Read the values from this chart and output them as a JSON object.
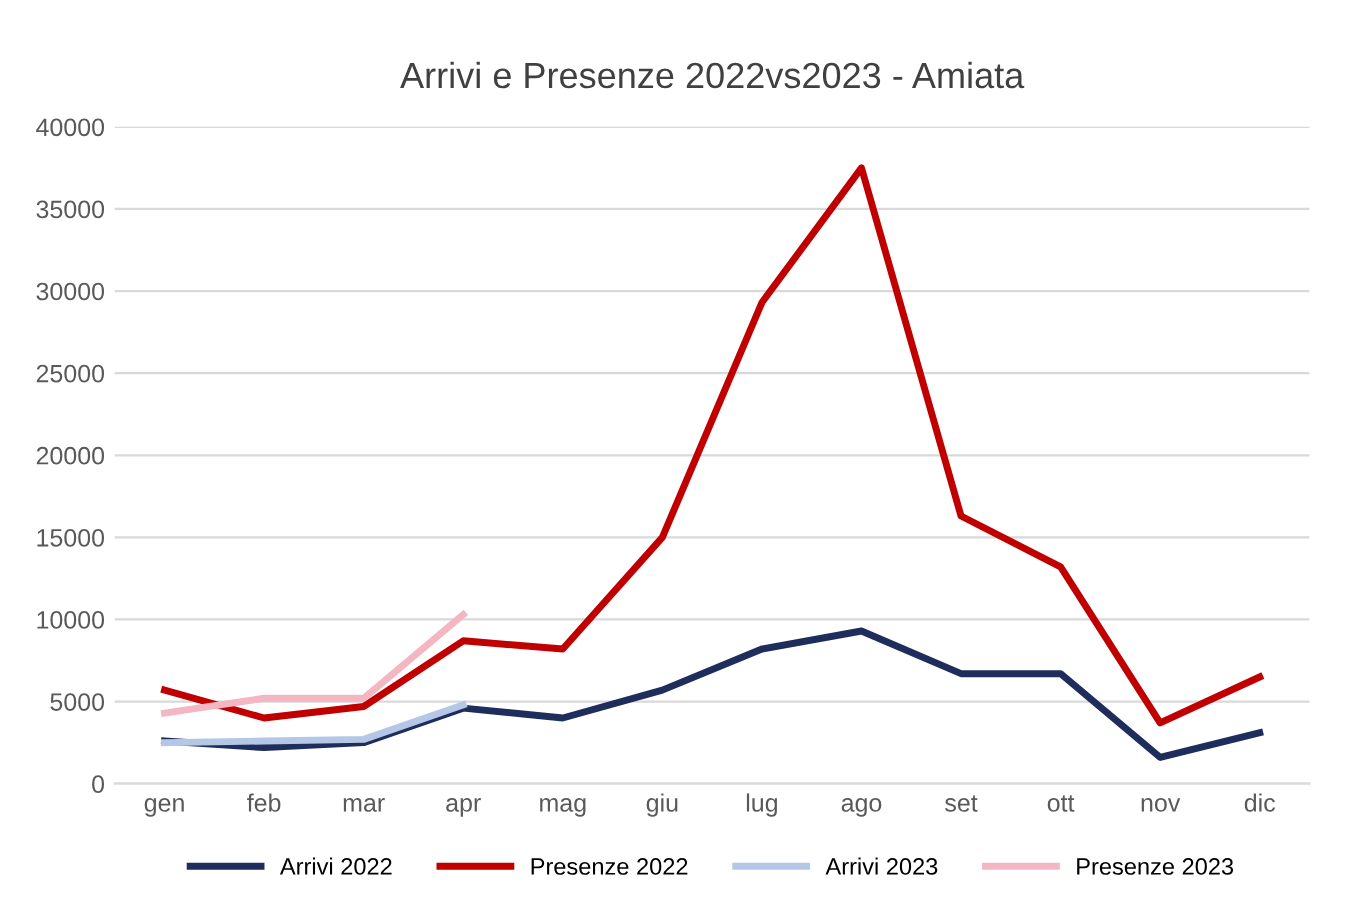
{
  "chart_data": {
    "type": "line",
    "title": "Arrivi e Presenze 2022vs2023 - Amiata",
    "categories": [
      "gen",
      "feb",
      "mar",
      "apr",
      "mag",
      "giu",
      "lug",
      "ago",
      "set",
      "ott",
      "nov",
      "dic"
    ],
    "series": [
      {
        "name": "Arrivi 2022",
        "color": "#1f2d5c",
        "values": [
          2600,
          2200,
          2500,
          4600,
          4000,
          5700,
          8200,
          9300,
          6700,
          6700,
          1600,
          3100
        ]
      },
      {
        "name": "Presenze 2022",
        "color": "#c00000",
        "values": [
          5700,
          4000,
          4700,
          8700,
          8200,
          15000,
          29300,
          37500,
          16300,
          13200,
          3700,
          6500
        ]
      },
      {
        "name": "Arrivi 2023",
        "color": "#b4c7e7",
        "values": [
          2500,
          2600,
          2700,
          4800,
          null,
          null,
          null,
          null,
          null,
          null,
          null,
          null
        ]
      },
      {
        "name": "Presenze 2023",
        "color": "#f4b6c2",
        "values": [
          4300,
          5200,
          5200,
          10300,
          null,
          null,
          null,
          null,
          null,
          null,
          null,
          null
        ]
      }
    ],
    "ylim": [
      0,
      40000
    ],
    "yticks": [
      0,
      5000,
      10000,
      15000,
      20000,
      25000,
      30000,
      35000,
      40000
    ],
    "grid": "y",
    "legend": "bottom",
    "marker": "none",
    "line_style": "solid"
  }
}
